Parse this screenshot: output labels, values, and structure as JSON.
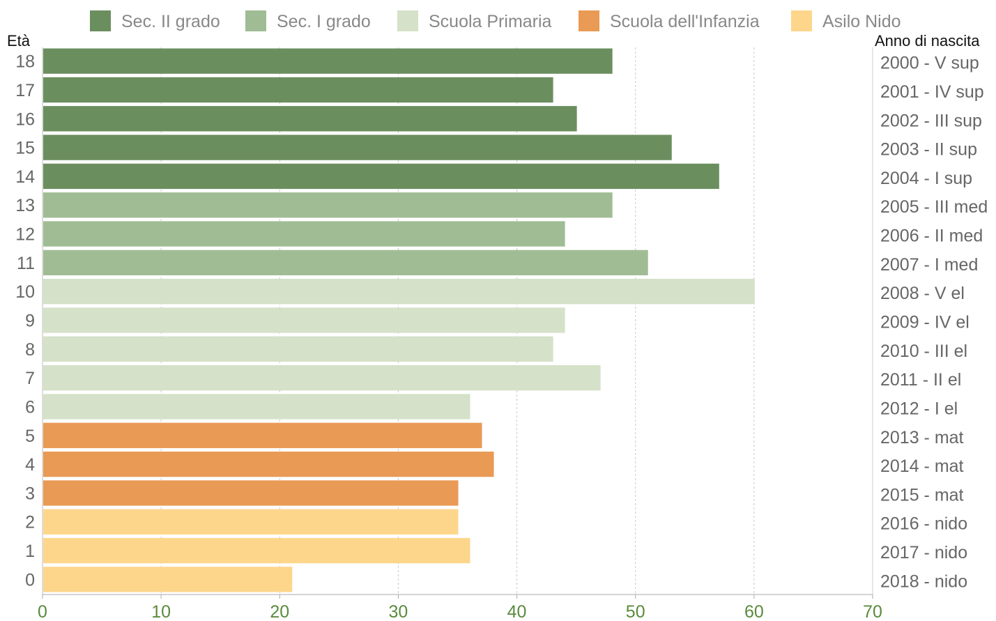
{
  "chart_data": {
    "type": "bar",
    "orientation": "horizontal",
    "left_axis_title": "Età",
    "right_axis_title": "Anno di nascita",
    "xlim": [
      0,
      70
    ],
    "x_ticks": [
      "0",
      "10",
      "20",
      "30",
      "40",
      "50",
      "60",
      "70"
    ],
    "grid": "vertical dashed",
    "legend_position": "top",
    "legend": [
      {
        "key": "sec2",
        "label": "Sec. II grado",
        "color": "#6b8e5e"
      },
      {
        "key": "sec1",
        "label": "Sec. I grado",
        "color": "#a0bc94"
      },
      {
        "key": "prim",
        "label": "Scuola Primaria",
        "color": "#d5e1c8"
      },
      {
        "key": "inf",
        "label": "Scuola dell'Infanzia",
        "color": "#e99a55"
      },
      {
        "key": "nido",
        "label": "Asilo Nido",
        "color": "#fdd68c"
      }
    ],
    "bars": [
      {
        "age": "18",
        "year_label": "2000 - V sup",
        "value": 48,
        "group": "sec2"
      },
      {
        "age": "17",
        "year_label": "2001 - IV sup",
        "value": 43,
        "group": "sec2"
      },
      {
        "age": "16",
        "year_label": "2002 - III sup",
        "value": 45,
        "group": "sec2"
      },
      {
        "age": "15",
        "year_label": "2003 - II sup",
        "value": 53,
        "group": "sec2"
      },
      {
        "age": "14",
        "year_label": "2004 - I sup",
        "value": 57,
        "group": "sec2"
      },
      {
        "age": "13",
        "year_label": "2005 - III med",
        "value": 48,
        "group": "sec1"
      },
      {
        "age": "12",
        "year_label": "2006 - II med",
        "value": 44,
        "group": "sec1"
      },
      {
        "age": "11",
        "year_label": "2007 - I med",
        "value": 51,
        "group": "sec1"
      },
      {
        "age": "10",
        "year_label": "2008 - V el",
        "value": 60,
        "group": "prim"
      },
      {
        "age": "9",
        "year_label": "2009 - IV el",
        "value": 44,
        "group": "prim"
      },
      {
        "age": "8",
        "year_label": "2010 - III el",
        "value": 43,
        "group": "prim"
      },
      {
        "age": "7",
        "year_label": "2011 - II el",
        "value": 47,
        "group": "prim"
      },
      {
        "age": "6",
        "year_label": "2012 - I el",
        "value": 36,
        "group": "prim"
      },
      {
        "age": "5",
        "year_label": "2013 - mat",
        "value": 37,
        "group": "inf"
      },
      {
        "age": "4",
        "year_label": "2014 - mat",
        "value": 38,
        "group": "inf"
      },
      {
        "age": "3",
        "year_label": "2015 - mat",
        "value": 35,
        "group": "inf"
      },
      {
        "age": "2",
        "year_label": "2016 - nido",
        "value": 35,
        "group": "nido"
      },
      {
        "age": "1",
        "year_label": "2017 - nido",
        "value": 36,
        "group": "nido"
      },
      {
        "age": "0",
        "year_label": "2018 - nido",
        "value": 21,
        "group": "nido"
      }
    ]
  }
}
